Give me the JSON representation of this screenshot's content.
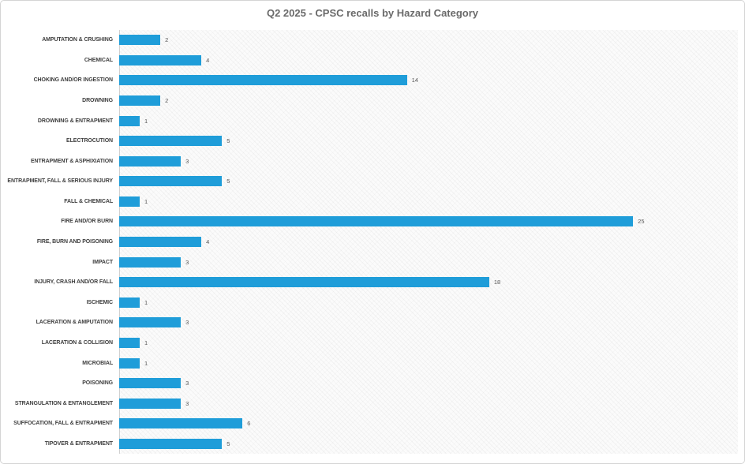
{
  "chart_data": {
    "type": "bar",
    "orientation": "horizontal",
    "title": "Q2 2025 - CPSC recalls by Hazard Category",
    "categories": [
      "AMPUTATION & CRUSHING",
      "CHEMICAL",
      "CHOKING AND/OR INGESTION",
      "DROWNING",
      "DROWNING & ENTRAPMENT",
      "ELECTROCUTION",
      "ENTRAPMENT & ASPHIXIATION",
      "ENTRAPMENT, FALL & SERIOUS INJURY",
      "FALL & CHEMICAL",
      "FIRE AND/OR BURN",
      "FIRE, BURN AND POISONING",
      "IMPACT",
      "INJURY, CRASH AND/OR FALL",
      "ISCHEMIC",
      "LACERATION & AMPUTATION",
      "LACERATION & COLLISION",
      "MICROBIAL",
      "POISONING",
      "STRANGULATION & ENTANGLEMENT",
      "SUFFOCATION, FALL & ENTRAPMENT",
      "TIPOVER & ENTRAPMENT"
    ],
    "values": [
      2,
      4,
      14,
      2,
      1,
      5,
      3,
      5,
      1,
      25,
      4,
      3,
      18,
      1,
      3,
      1,
      1,
      3,
      3,
      6,
      5
    ],
    "xlim": [
      0,
      30.1
    ],
    "xlabel": "",
    "ylabel": "",
    "grid": false,
    "legend": false,
    "data_labels": true,
    "bar_color": "#1F9DD9",
    "title_color": "#6A6A6A",
    "category_label_color": "#3F3F3F",
    "value_label_color": "#595959",
    "plot_background": "#FBFBFB",
    "axis_line_color": "#D0D0D0"
  }
}
